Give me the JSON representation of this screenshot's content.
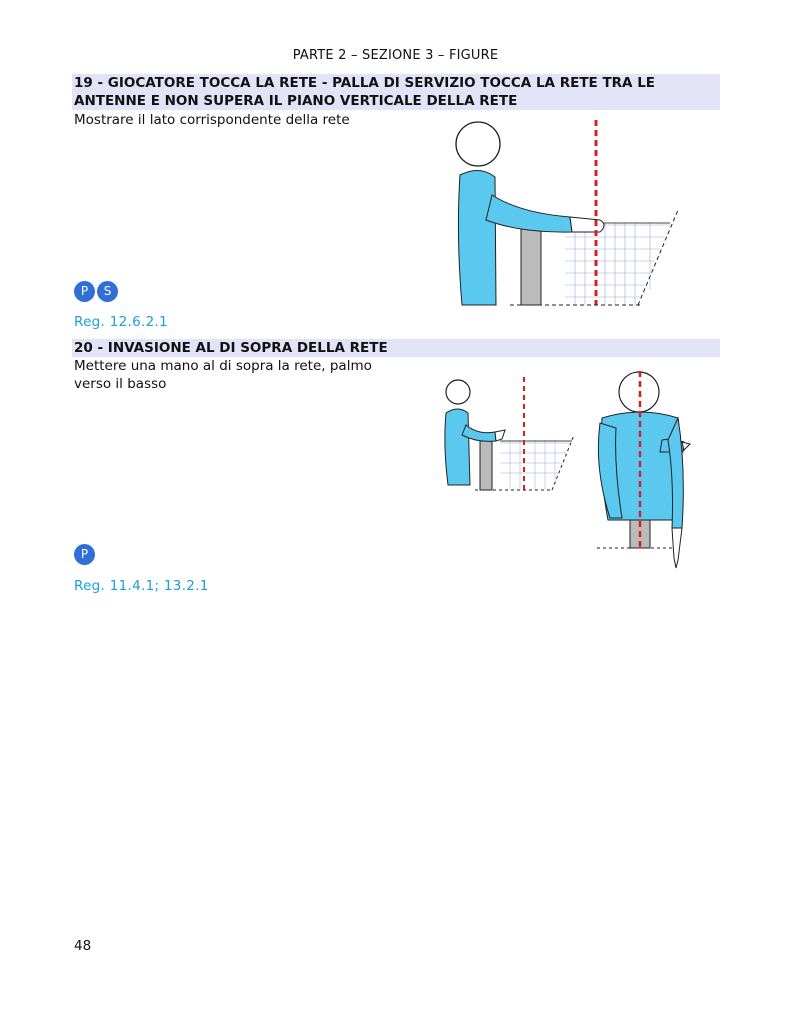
{
  "header": {
    "text": "PARTE 2 – SEZIONE 3 – FIGURE"
  },
  "sections": [
    {
      "title": "19 - GIOCATORE TOCCA LA RETE - PALLA DI SERVIZIO TOCCA LA RETE TRA LE ANTENNE E NON SUPERA IL PIANO VERTICALE DELLA RETE",
      "description": "Mostrare il lato corrispondente della rete",
      "badges": [
        "P",
        "S"
      ],
      "reference": "Reg. 12.6.2.1"
    },
    {
      "title": "20 - INVASIONE AL DI SOPRA DELLA RETE",
      "description": "Mettere una mano al di sopra la rete, palmo verso il basso",
      "badges": [
        "P"
      ],
      "reference": "Reg. 11.4.1; 13.2.1"
    }
  ],
  "colors": {
    "band": "#e3e3f7",
    "reference": "#1aa0d8",
    "badge": "#2f6fd6",
    "shirt": "#5bc8f0",
    "antenna_red": "#d42020"
  },
  "icons": [
    "referee-figure-19",
    "referee-figure-20-side",
    "referee-figure-20-front"
  ],
  "page_number": "48"
}
